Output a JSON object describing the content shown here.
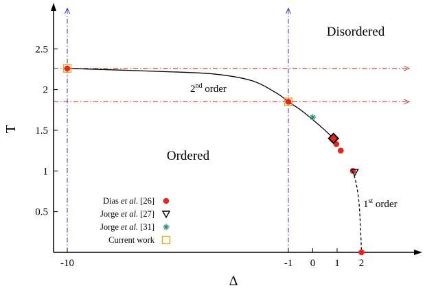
{
  "chart_data": {
    "type": "scatter",
    "title": "",
    "xlabel": "Δ",
    "ylabel": "T",
    "x_ticks": [
      {
        "value": -10,
        "label": "-10"
      },
      {
        "value": -1,
        "label": "-1"
      },
      {
        "value": 0,
        "label": "0"
      },
      {
        "value": 1,
        "label": "1"
      },
      {
        "value": 2,
        "label": "2"
      }
    ],
    "y_ticks": [
      {
        "value": 0.5,
        "label": "0.5"
      },
      {
        "value": 1,
        "label": "1"
      },
      {
        "value": 1.5,
        "label": "1.5"
      },
      {
        "value": 2,
        "label": "2"
      },
      {
        "value": 2.5,
        "label": "2.5"
      }
    ],
    "region_labels": {
      "disordered": "Disordered",
      "ordered": "Ordered"
    },
    "transition_labels": {
      "second_order_base": "2",
      "second_order_sup": "nd",
      "second_order_rest": " order",
      "first_order_base": "1",
      "first_order_sup": "st",
      "first_order_rest": " order"
    },
    "legend": [
      {
        "pre": "Dias ",
        "italic": "et al",
        "post": ". [26]",
        "marker": "filled-circle",
        "color": "#e8231e"
      },
      {
        "pre": "Jorge ",
        "italic": "et al",
        "post": ". [27]",
        "marker": "open-triangle-down",
        "color": "#000000"
      },
      {
        "pre": "Jorge ",
        "italic": "et al",
        "post": ". [31]",
        "marker": "asterisk",
        "color": "#1f8f6a"
      },
      {
        "pre": "Current work",
        "italic": "",
        "post": "",
        "marker": "open-square",
        "color": "#e8a317"
      }
    ],
    "series": [
      {
        "name": "Dias et al. [26]",
        "marker": "filled-circle",
        "color": "#e8231e",
        "points": [
          [
            -10,
            2.26
          ],
          [
            -1,
            1.85
          ],
          [
            0.85,
            1.4
          ],
          [
            0.97,
            1.33
          ],
          [
            1.15,
            1.25
          ],
          [
            1.65,
            1.0
          ],
          [
            2.0,
            0.0
          ]
        ]
      },
      {
        "name": "Jorge et al. [27]",
        "marker": "open-triangle-down",
        "color": "#000000",
        "points": [
          [
            1.72,
            0.985
          ]
        ]
      },
      {
        "name": "Jorge et al. [31]",
        "marker": "asterisk",
        "color": "#1f8f6a",
        "points": [
          [
            0.0,
            1.66
          ]
        ]
      },
      {
        "name": "Current work",
        "marker": "open-square",
        "color": "#e8a317",
        "points": [
          [
            -10,
            2.26
          ],
          [
            -1,
            1.85
          ]
        ]
      }
    ],
    "tricritical_point": [
      0.85,
      1.4
    ],
    "tricritical_color": "#e8231e",
    "guide_color_vertical": "#2f2fd6",
    "guide_color_horizontal": "#d42020",
    "vertical_guides_x": [
      -10,
      -1
    ],
    "horizontal_guides_y": [
      2.26,
      1.85
    ],
    "second_order_curve": [
      [
        -10,
        2.26
      ],
      [
        -6,
        2.22
      ],
      [
        -4,
        2.19
      ],
      [
        -2.5,
        2.11
      ],
      [
        -1.5,
        1.96
      ],
      [
        -1,
        1.85
      ],
      [
        -0.5,
        1.75
      ],
      [
        0,
        1.63
      ],
      [
        0.5,
        1.5
      ],
      [
        0.85,
        1.4
      ]
    ],
    "first_order_curve": [
      [
        1.65,
        1.0
      ],
      [
        1.8,
        0.82
      ],
      [
        1.9,
        0.6
      ],
      [
        1.96,
        0.3
      ],
      [
        2.0,
        0.0
      ]
    ]
  }
}
